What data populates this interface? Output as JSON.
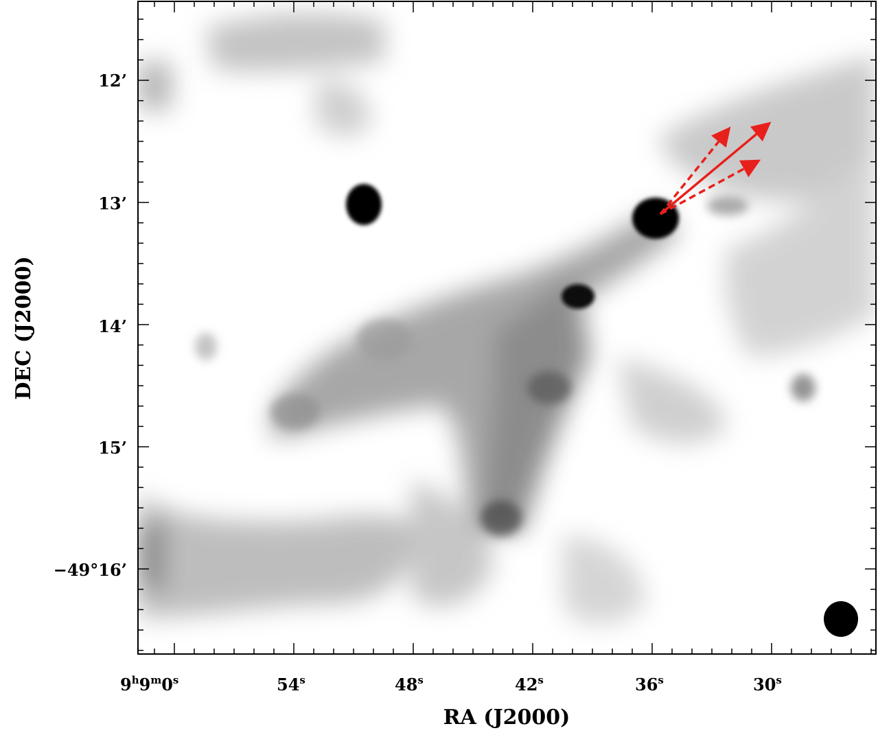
{
  "plot": {
    "xlabel": "RA (J2000)",
    "ylabel": "DEC (J2000)",
    "x_ticks": [
      {
        "label": "9",
        "sup1": "h",
        "mid": "9",
        "sup2": "m",
        "tail": "0",
        "sup3": "s"
      },
      {
        "label": "54",
        "sup1": "s"
      },
      {
        "label": "48",
        "sup1": "s"
      },
      {
        "label": "42",
        "sup1": "s"
      },
      {
        "label": "36",
        "sup1": "s"
      },
      {
        "label": "30",
        "sup1": "s"
      }
    ],
    "y_ticks": [
      "12’",
      "13’",
      "14’",
      "15’",
      "−49°16’"
    ],
    "colormap": "greyscale (white = low, black = high)",
    "arrow_color": "#e8201c",
    "beam_color": "#000000",
    "arrows": [
      {
        "style": "solid"
      },
      {
        "style": "dashed"
      },
      {
        "style": "dashed"
      }
    ]
  }
}
